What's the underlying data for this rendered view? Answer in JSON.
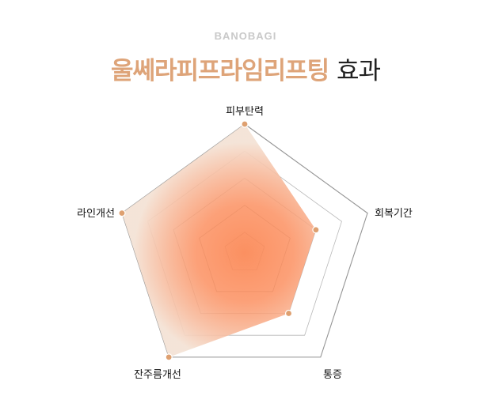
{
  "header": {
    "brand": "BANOBAGI",
    "title_highlight": "울쎄라피프라임리프팅",
    "title_rest": "효과"
  },
  "chart_data": {
    "type": "radar",
    "axes": [
      "피부탄력",
      "회복기간",
      "통증",
      "잔주름개선",
      "라인개선"
    ],
    "values": [
      5,
      3,
      3,
      5,
      5
    ],
    "range": [
      1,
      5
    ],
    "levels": 5,
    "colors": {
      "fill_center": "#fb8a58",
      "fill_edge": "#f4e3d6",
      "point": "#dea070",
      "grid": "#888888",
      "accent": "#dea479"
    }
  }
}
